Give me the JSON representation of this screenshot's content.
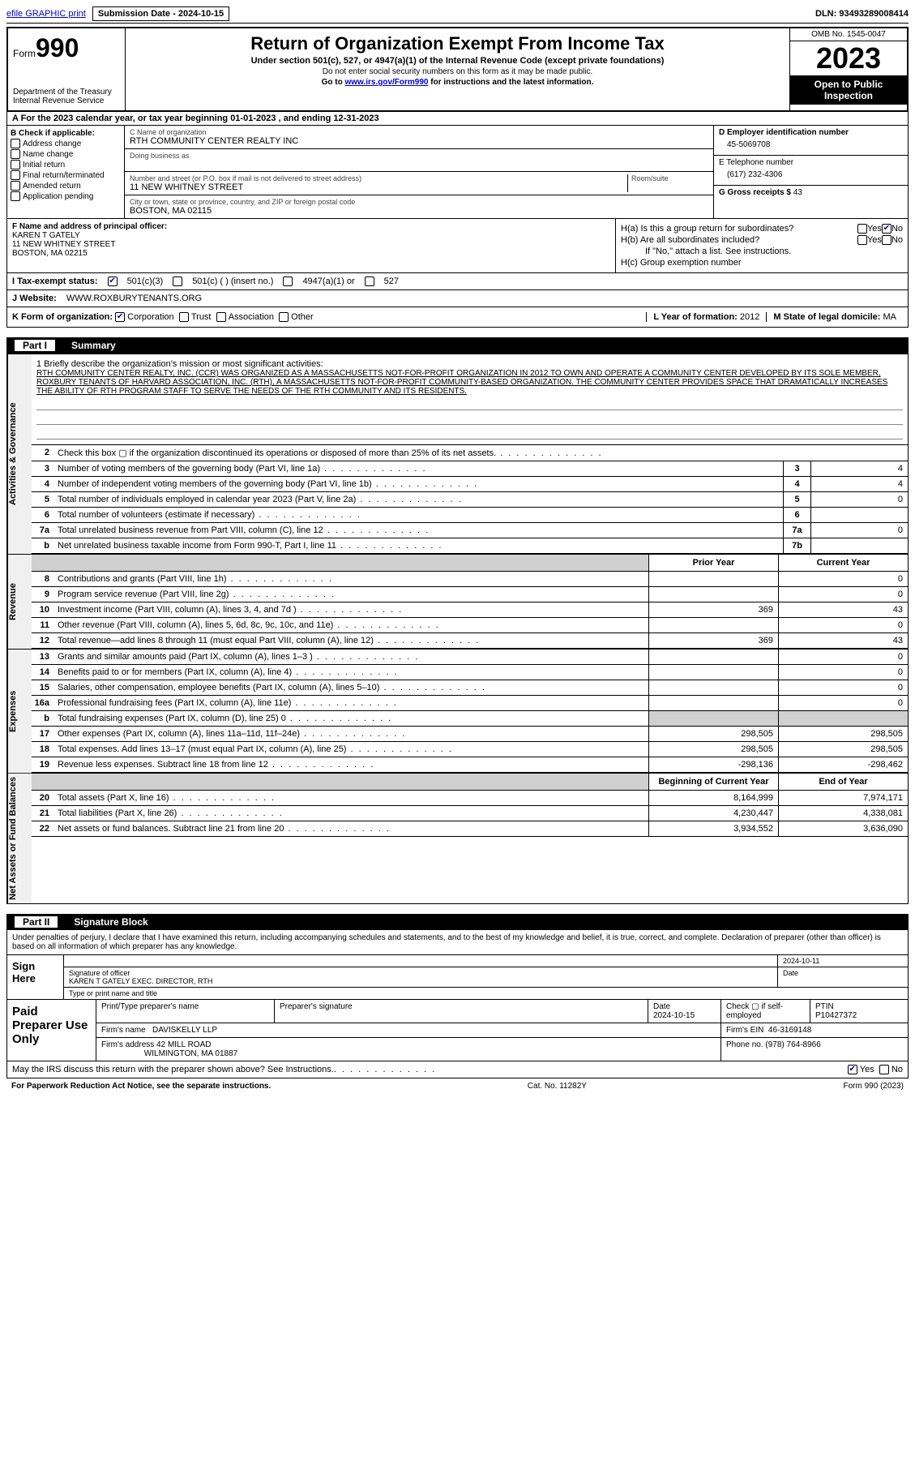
{
  "meta": {
    "dln": "DLN: 93493289008414",
    "submission_date_label": "Submission Date - 2024-10-15",
    "efile_link": "efile GRAPHIC print"
  },
  "header": {
    "form_word": "Form",
    "form_num": "990",
    "dept": "Department of the Treasury",
    "irs": "Internal Revenue Service",
    "title": "Return of Organization Exempt From Income Tax",
    "sub": "Under section 501(c), 527, or 4947(a)(1) of the Internal Revenue Code (except private foundations)",
    "note1": "Do not enter social security numbers on this form as it may be made public.",
    "note2_pre": "Go to ",
    "note2_link": "www.irs.gov/Form990",
    "note2_post": " for instructions and the latest information.",
    "omb": "OMB No. 1545-0047",
    "year": "2023",
    "open_public": "Open to Public Inspection"
  },
  "row_a": "A For the 2023 calendar year, or tax year beginning 01-01-2023    , and ending 12-31-2023",
  "col_b": {
    "hdr": "B Check if applicable:",
    "items": [
      "Address change",
      "Name change",
      "Initial return",
      "Final return/terminated",
      "Amended return",
      "Application pending"
    ]
  },
  "col_c": {
    "name_label": "C Name of organization",
    "name": "RTH COMMUNITY CENTER REALTY INC",
    "dba_label": "Doing business as",
    "dba": "",
    "addr_label": "Number and street (or P.O. box if mail is not delivered to street address)",
    "addr": "11 NEW WHITNEY STREET",
    "room_label": "Room/suite",
    "city_label": "City or town, state or province, country, and ZIP or foreign postal code",
    "city": "BOSTON, MA  02115"
  },
  "col_d": {
    "ein_label": "D Employer identification number",
    "ein": "45-5069708",
    "phone_label": "E Telephone number",
    "phone": "(617) 232-4306",
    "gross_label": "G Gross receipts $",
    "gross": "43"
  },
  "col_f": {
    "label": "F  Name and address of principal officer:",
    "name": "KAREN T GATELY",
    "addr1": "11 NEW WHITNEY STREET",
    "addr2": "BOSTON, MA  02215"
  },
  "col_h": {
    "a_label": "H(a)  Is this a group return for subordinates?",
    "a_yes": "Yes",
    "a_no": "No",
    "b_label": "H(b)  Are all subordinates included?",
    "b_yes": "Yes",
    "b_no": "No",
    "b_note": "If \"No,\" attach a list. See instructions.",
    "c_label": "H(c)  Group exemption number"
  },
  "row_i": {
    "label": "I    Tax-exempt status:",
    "o1": "501(c)(3)",
    "o2": "501(c) (  ) (insert no.)",
    "o3": "4947(a)(1) or",
    "o4": "527"
  },
  "row_j": {
    "label": "J   Website:",
    "val": "WWW.ROXBURYTENANTS.ORG"
  },
  "row_k": {
    "label": "K Form of organization:",
    "o1": "Corporation",
    "o2": "Trust",
    "o3": "Association",
    "o4": "Other",
    "l_label": "L Year of formation:",
    "l_val": "2012",
    "m_label": "M State of legal domicile:",
    "m_val": "MA"
  },
  "part1": {
    "label": "Part I",
    "title": "Summary"
  },
  "mission": {
    "label": "1   Briefly describe the organization's mission or most significant activities:",
    "text": "RTH COMMUNITY CENTER REALTY, INC. (CCR) WAS ORGANIZED AS A MASSACHUSETTS NOT-FOR-PROFIT ORGANIZATION IN 2012 TO OWN AND OPERATE A COMMUNITY CENTER DEVELOPED BY ITS SOLE MEMBER, ROXBURY TENANTS OF HARVARD ASSOCIATION, INC. (RTH), A MASSACHUSETTS NOT-FOR-PROFIT COMMUNITY-BASED ORGANIZATION. THE COMMUNITY CENTER PROVIDES SPACE THAT DRAMATICALLY INCREASES THE ABILITY OF RTH PROGRAM STAFF TO SERVE THE NEEDS OF THE RTH COMMUNITY AND ITS RESIDENTS."
  },
  "vlabels": {
    "ag": "Activities & Governance",
    "rev": "Revenue",
    "exp": "Expenses",
    "na": "Net Assets or Fund Balances"
  },
  "lines_gov": [
    {
      "n": "2",
      "d": "Check this box  ▢  if the organization discontinued its operations or disposed of more than 25% of its net assets."
    },
    {
      "n": "3",
      "d": "Number of voting members of the governing body (Part VI, line 1a)",
      "bn": "3",
      "bv": "4"
    },
    {
      "n": "4",
      "d": "Number of independent voting members of the governing body (Part VI, line 1b)",
      "bn": "4",
      "bv": "4"
    },
    {
      "n": "5",
      "d": "Total number of individuals employed in calendar year 2023 (Part V, line 2a)",
      "bn": "5",
      "bv": "0"
    },
    {
      "n": "6",
      "d": "Total number of volunteers (estimate if necessary)",
      "bn": "6",
      "bv": ""
    },
    {
      "n": "7a",
      "d": "Total unrelated business revenue from Part VIII, column (C), line 12",
      "bn": "7a",
      "bv": "0"
    },
    {
      "n": "b",
      "d": "Net unrelated business taxable income from Form 990-T, Part I, line 11",
      "bn": "7b",
      "bv": ""
    }
  ],
  "two_col_hdr": {
    "p": "Prior Year",
    "c": "Current Year"
  },
  "lines_rev": [
    {
      "n": "8",
      "d": "Contributions and grants (Part VIII, line 1h)",
      "p": "",
      "c": "0"
    },
    {
      "n": "9",
      "d": "Program service revenue (Part VIII, line 2g)",
      "p": "",
      "c": "0"
    },
    {
      "n": "10",
      "d": "Investment income (Part VIII, column (A), lines 3, 4, and 7d )",
      "p": "369",
      "c": "43"
    },
    {
      "n": "11",
      "d": "Other revenue (Part VIII, column (A), lines 5, 6d, 8c, 9c, 10c, and 11e)",
      "p": "",
      "c": "0"
    },
    {
      "n": "12",
      "d": "Total revenue—add lines 8 through 11 (must equal Part VIII, column (A), line 12)",
      "p": "369",
      "c": "43"
    }
  ],
  "lines_exp": [
    {
      "n": "13",
      "d": "Grants and similar amounts paid (Part IX, column (A), lines 1–3 )",
      "p": "",
      "c": "0"
    },
    {
      "n": "14",
      "d": "Benefits paid to or for members (Part IX, column (A), line 4)",
      "p": "",
      "c": "0"
    },
    {
      "n": "15",
      "d": "Salaries, other compensation, employee benefits (Part IX, column (A), lines 5–10)",
      "p": "",
      "c": "0"
    },
    {
      "n": "16a",
      "d": "Professional fundraising fees (Part IX, column (A), line 11e)",
      "p": "",
      "c": "0"
    },
    {
      "n": "b",
      "d": "Total fundraising expenses (Part IX, column (D), line 25) 0",
      "grey": true
    },
    {
      "n": "17",
      "d": "Other expenses (Part IX, column (A), lines 11a–11d, 11f–24e)",
      "p": "298,505",
      "c": "298,505"
    },
    {
      "n": "18",
      "d": "Total expenses. Add lines 13–17 (must equal Part IX, column (A), line 25)",
      "p": "298,505",
      "c": "298,505"
    },
    {
      "n": "19",
      "d": "Revenue less expenses. Subtract line 18 from line 12",
      "p": "-298,136",
      "c": "-298,462"
    }
  ],
  "two_col_hdr2": {
    "p": "Beginning of Current Year",
    "c": "End of Year"
  },
  "lines_na": [
    {
      "n": "20",
      "d": "Total assets (Part X, line 16)",
      "p": "8,164,999",
      "c": "7,974,171"
    },
    {
      "n": "21",
      "d": "Total liabilities (Part X, line 26)",
      "p": "4,230,447",
      "c": "4,338,081"
    },
    {
      "n": "22",
      "d": "Net assets or fund balances. Subtract line 21 from line 20",
      "p": "3,934,552",
      "c": "3,636,090"
    }
  ],
  "part2": {
    "label": "Part II",
    "title": "Signature Block"
  },
  "sig_intro": "Under penalties of perjury, I declare that I have examined this return, including accompanying schedules and statements, and to the best of my knowledge and belief, it is true, correct, and complete. Declaration of preparer (other than officer) is based on all information of which preparer has any knowledge.",
  "sign": {
    "left": "Sign Here",
    "date": "2024-10-11",
    "sig_label": "Signature of officer",
    "name": "KAREN T GATELY  EXEC. DIRECTOR, RTH",
    "type_label": "Type or print name and title"
  },
  "prep": {
    "left": "Paid Preparer Use Only",
    "h1": "Print/Type preparer's name",
    "h2": "Preparer's signature",
    "h3_label": "Date",
    "h3": "2024-10-15",
    "h4": "Check ▢ if self-employed",
    "h5_label": "PTIN",
    "h5": "P10427372",
    "firm_label": "Firm's name",
    "firm": "DAVISKELLY LLP",
    "ein_label": "Firm's EIN",
    "ein": "46-3169148",
    "addr_label": "Firm's address",
    "addr1": "42 MILL ROAD",
    "addr2": "WILMINGTON, MA  01887",
    "phone_label": "Phone no.",
    "phone": "(978) 764-8966"
  },
  "discuss": {
    "q": "May the IRS discuss this return with the preparer shown above? See Instructions.",
    "yes": "Yes",
    "no": "No"
  },
  "footer": {
    "left": "For Paperwork Reduction Act Notice, see the separate instructions.",
    "mid": "Cat. No. 11282Y",
    "right": "Form 990 (2023)"
  }
}
